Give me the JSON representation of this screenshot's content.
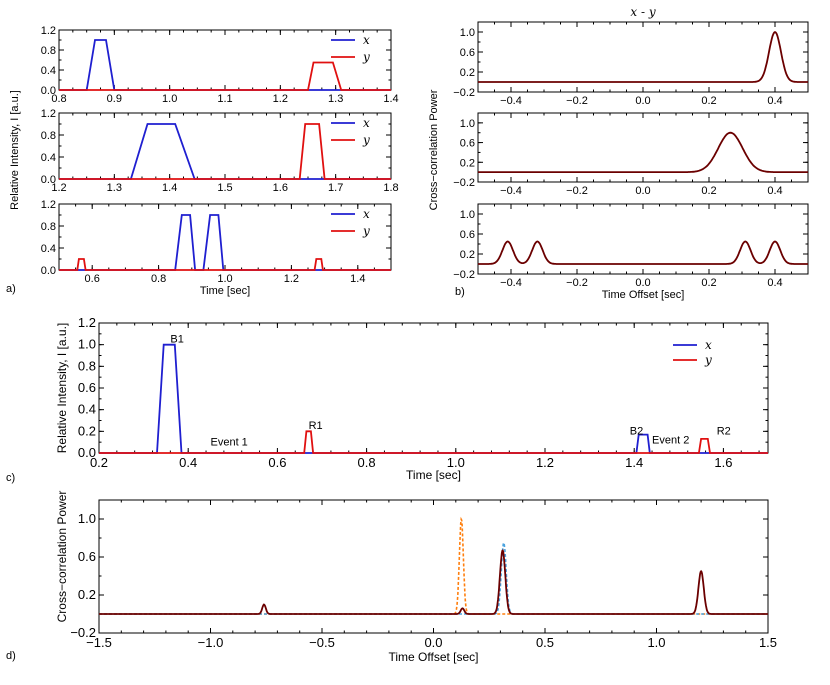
{
  "panel_labels": {
    "a": "a)",
    "b": "b)",
    "c": "c)",
    "d": "d)"
  },
  "colors": {
    "x": "#1f1fd0",
    "y": "#e01010",
    "cc": "#6b0000",
    "dashed_orange": "#ff7f0e",
    "dashed_blue": "#4aa3df"
  },
  "chart_data": [
    {
      "id": "a1",
      "type": "line",
      "xlim": [
        0.8,
        1.4
      ],
      "ylim": [
        0,
        1.2
      ],
      "xticks": [
        "0.8",
        "0.9",
        "1.0",
        "1.1",
        "1.2",
        "1.3",
        "1.4"
      ],
      "yticks": [
        "0.0",
        "0.4",
        "0.8",
        "1.2"
      ],
      "legend": [
        "x",
        "y"
      ],
      "series": [
        {
          "name": "x",
          "x": [
            0.8,
            0.85,
            0.865,
            0.885,
            0.9,
            1.4
          ],
          "y": [
            0,
            0,
            1.0,
            1.0,
            0,
            0
          ]
        },
        {
          "name": "y",
          "x": [
            0.8,
            1.25,
            1.26,
            1.295,
            1.31,
            1.4
          ],
          "y": [
            0,
            0,
            0.55,
            0.55,
            0,
            0
          ]
        }
      ]
    },
    {
      "id": "a2",
      "type": "line",
      "xlim": [
        1.2,
        1.8
      ],
      "ylim": [
        0,
        1.2
      ],
      "xticks": [
        "1.2",
        "1.3",
        "1.4",
        "1.5",
        "1.6",
        "1.7",
        "1.8"
      ],
      "yticks": [
        "0.0",
        "0.4",
        "0.8",
        "1.2"
      ],
      "legend": [
        "x",
        "y"
      ],
      "ylabel": "Relative Intensity, I [a.u.]",
      "series": [
        {
          "name": "x",
          "x": [
            1.2,
            1.33,
            1.36,
            1.41,
            1.445,
            1.8
          ],
          "y": [
            0,
            0,
            1.0,
            1.0,
            0,
            0
          ]
        },
        {
          "name": "y",
          "x": [
            1.2,
            1.635,
            1.645,
            1.67,
            1.68,
            1.8
          ],
          "y": [
            0,
            0,
            1.0,
            1.0,
            0,
            0
          ]
        }
      ]
    },
    {
      "id": "a3",
      "type": "line",
      "xlim": [
        0.5,
        1.5
      ],
      "ylim": [
        0,
        1.2
      ],
      "xticks": [
        "0.6",
        "0.8",
        "1.0",
        "1.2",
        "1.4"
      ],
      "xtick_values": [
        0.6,
        0.8,
        1.0,
        1.2,
        1.4
      ],
      "yticks": [
        "0.0",
        "0.4",
        "0.8",
        "1.2"
      ],
      "legend": [
        "x",
        "y"
      ],
      "xlabel": "Time [sec]",
      "series": [
        {
          "name": "x",
          "x": [
            0.5,
            0.85,
            0.87,
            0.895,
            0.91,
            0.935,
            0.955,
            0.98,
            0.995,
            1.5
          ],
          "y": [
            0,
            0,
            1.0,
            1.0,
            0,
            0,
            1.0,
            1.0,
            0,
            0
          ]
        },
        {
          "name": "y",
          "x": [
            0.5,
            0.555,
            0.56,
            0.575,
            0.58,
            1.27,
            1.275,
            1.29,
            1.295,
            1.5
          ],
          "y": [
            0,
            0,
            0.2,
            0.2,
            0,
            0,
            0.2,
            0.2,
            0,
            0
          ]
        }
      ]
    },
    {
      "id": "b1",
      "type": "line",
      "title": "x - y",
      "xlim": [
        -0.5,
        0.5
      ],
      "ylim": [
        -0.2,
        1.2
      ],
      "xticks": [
        "−0.4",
        "−0.2",
        "0.0",
        "0.2",
        "0.4"
      ],
      "xtick_values": [
        -0.4,
        -0.2,
        0.0,
        0.2,
        0.4
      ],
      "yticks": [
        "−0.2",
        "0.2",
        "0.6",
        "1.0"
      ],
      "ytick_values": [
        -0.2,
        0.2,
        0.6,
        1.0
      ],
      "peaks": [
        {
          "center": 0.4,
          "height": 1.0,
          "sigma": 0.018
        }
      ]
    },
    {
      "id": "b2",
      "type": "line",
      "xlim": [
        -0.5,
        0.5
      ],
      "ylim": [
        -0.2,
        1.2
      ],
      "xticks": [
        "−0.4",
        "−0.2",
        "0.0",
        "0.2",
        "0.4"
      ],
      "xtick_values": [
        -0.4,
        -0.2,
        0.0,
        0.2,
        0.4
      ],
      "yticks": [
        "−0.2",
        "0.2",
        "0.6",
        "1.0"
      ],
      "ytick_values": [
        -0.2,
        0.2,
        0.6,
        1.0
      ],
      "ylabel": "Cross−correlation Power",
      "peaks": [
        {
          "center": 0.265,
          "height": 0.8,
          "sigma": 0.037
        }
      ]
    },
    {
      "id": "b3",
      "type": "line",
      "xlim": [
        -0.5,
        0.5
      ],
      "ylim": [
        -0.2,
        1.2
      ],
      "xticks": [
        "−0.4",
        "−0.2",
        "0.0",
        "0.2",
        "0.4"
      ],
      "xtick_values": [
        -0.4,
        -0.2,
        0.0,
        0.2,
        0.4
      ],
      "yticks": [
        "−0.2",
        "0.2",
        "0.6",
        "1.0"
      ],
      "ytick_values": [
        -0.2,
        0.2,
        0.6,
        1.0
      ],
      "xlabel": "Time Offset [sec]",
      "peaks": [
        {
          "center": -0.41,
          "height": 0.45,
          "sigma": 0.016
        },
        {
          "center": -0.32,
          "height": 0.45,
          "sigma": 0.016
        },
        {
          "center": 0.31,
          "height": 0.45,
          "sigma": 0.016
        },
        {
          "center": 0.4,
          "height": 0.45,
          "sigma": 0.016
        }
      ]
    },
    {
      "id": "c",
      "type": "line",
      "xlim": [
        0.2,
        1.7
      ],
      "ylim": [
        0,
        1.2
      ],
      "xticks": [
        "0.2",
        "0.4",
        "0.6",
        "0.8",
        "1.0",
        "1.2",
        "1.4",
        "1.6"
      ],
      "xtick_values": [
        0.2,
        0.4,
        0.6,
        0.8,
        1.0,
        1.2,
        1.4,
        1.6
      ],
      "yticks": [
        "0.0",
        "0.2",
        "0.4",
        "0.6",
        "0.8",
        "1.0",
        "1.2"
      ],
      "ytick_values": [
        0,
        0.2,
        0.4,
        0.6,
        0.8,
        1.0,
        1.2
      ],
      "ytick_labels_shown": [
        "0.0",
        "0.4",
        "0.8",
        "1.2"
      ],
      "legend": [
        "x",
        "y"
      ],
      "xlabel": "Time [sec]",
      "ylabel": "Relative Intensity, I [a.u.]",
      "annotations": [
        {
          "text": "B1",
          "x": 0.36,
          "y": 1.02
        },
        {
          "text": "Event 1",
          "x": 0.45,
          "y": 0.07
        },
        {
          "text": "R1",
          "x": 0.67,
          "y": 0.22
        },
        {
          "text": "B2",
          "x": 1.39,
          "y": 0.17
        },
        {
          "text": "Event 2",
          "x": 1.44,
          "y": 0.09
        },
        {
          "text": "R2",
          "x": 1.585,
          "y": 0.17
        }
      ],
      "series": [
        {
          "name": "x",
          "x": [
            0.2,
            0.33,
            0.345,
            0.37,
            0.385,
            1.405,
            1.41,
            1.43,
            1.435,
            1.7
          ],
          "y": [
            0,
            0,
            1.0,
            1.0,
            0,
            0,
            0.17,
            0.17,
            0,
            0
          ]
        },
        {
          "name": "y",
          "x": [
            0.2,
            0.66,
            0.665,
            0.675,
            0.68,
            1.545,
            1.55,
            1.565,
            1.57,
            1.7
          ],
          "y": [
            0,
            0,
            0.2,
            0.2,
            0,
            0,
            0.13,
            0.13,
            0,
            0
          ]
        }
      ]
    },
    {
      "id": "d",
      "type": "line",
      "xlim": [
        -1.5,
        1.5
      ],
      "ylim": [
        -0.2,
        1.2
      ],
      "xticks": [
        "−1.5",
        "−1.0",
        "−0.5",
        "0.0",
        "0.5",
        "1.0",
        "1.5"
      ],
      "xtick_values": [
        -1.5,
        -1.0,
        -0.5,
        0.0,
        0.5,
        1.0,
        1.5
      ],
      "yticks": [
        "−0.2",
        "0.2",
        "0.6",
        "1.0"
      ],
      "ytick_values": [
        -0.2,
        0.2,
        0.6,
        1.0
      ],
      "xlabel": "Time Offset [sec]",
      "ylabel": "Cross−correlation Power",
      "series": [
        {
          "name": "solid",
          "style": "solid",
          "peaks": [
            {
              "center": -0.76,
              "height": 0.1,
              "sigma": 0.008
            },
            {
              "center": 0.13,
              "height": 0.06,
              "sigma": 0.008
            },
            {
              "center": 0.31,
              "height": 0.67,
              "sigma": 0.012
            },
            {
              "center": 1.2,
              "height": 0.45,
              "sigma": 0.012
            }
          ]
        },
        {
          "name": "dashed-orange",
          "style": "dashed",
          "peaks": [
            {
              "center": 0.125,
              "height": 1.0,
              "sigma": 0.009
            }
          ]
        },
        {
          "name": "dashed-blue",
          "style": "dashed",
          "peaks": [
            {
              "center": 0.315,
              "height": 0.75,
              "sigma": 0.011
            }
          ]
        }
      ]
    }
  ]
}
